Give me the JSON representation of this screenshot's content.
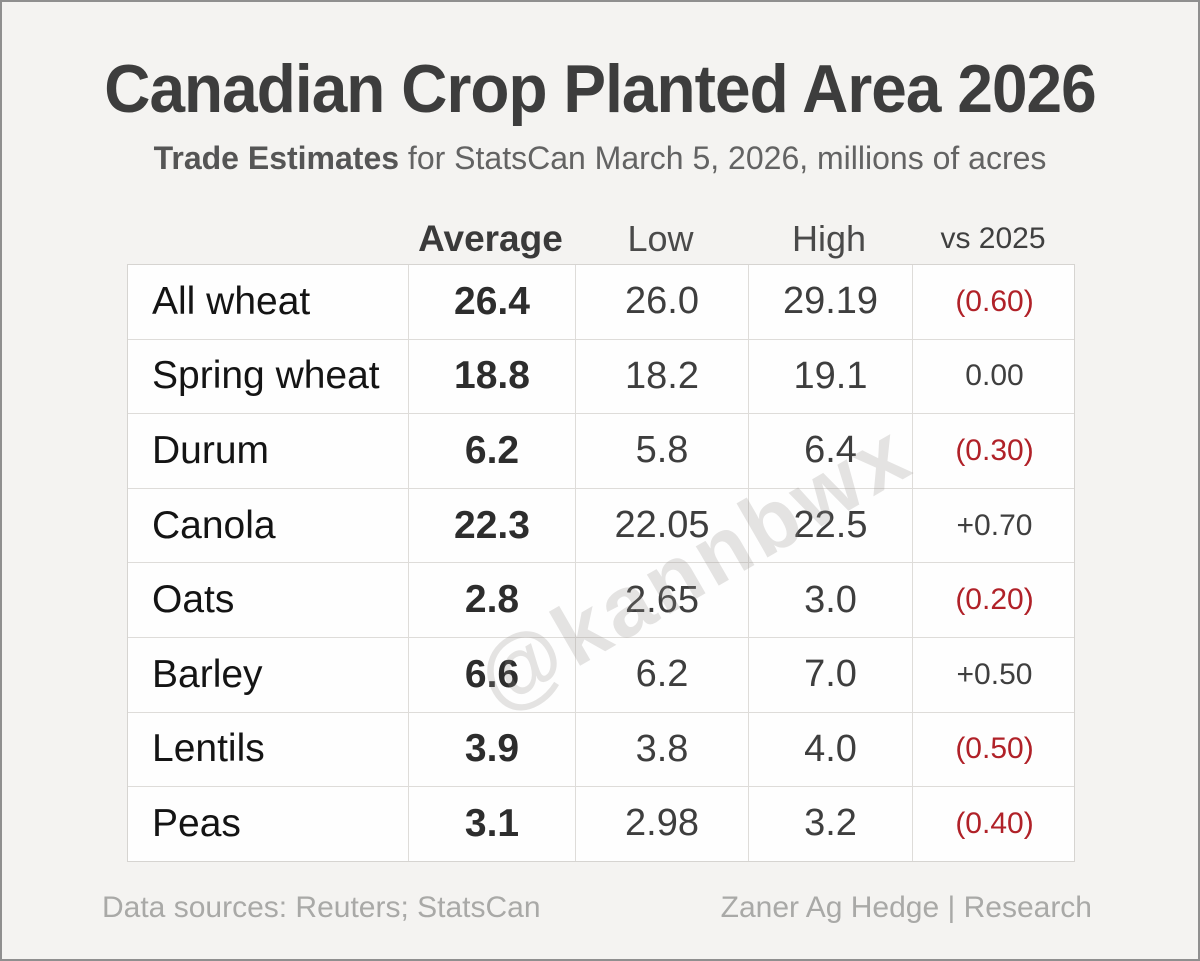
{
  "page": {
    "title": "Canadian Crop Planted Area 2026",
    "subtitle_bold": "Trade Estimates",
    "subtitle_rest": " for StatsCan March 5, 2026, millions of acres",
    "watermark": "@kannbwx"
  },
  "chart_data": {
    "type": "table",
    "title": "Canadian Crop Planted Area 2026",
    "subtitle": "Trade Estimates for StatsCan March 5, 2026, millions of acres",
    "units": "millions of acres",
    "columns": [
      "Average",
      "Low",
      "High",
      "vs 2025"
    ],
    "rows": [
      {
        "crop": "All wheat",
        "average": 26.4,
        "low": 26.0,
        "high": 29.19,
        "vs_2025": -0.6
      },
      {
        "crop": "Spring wheat",
        "average": 18.8,
        "low": 18.2,
        "high": 19.1,
        "vs_2025": 0.0
      },
      {
        "crop": "Durum",
        "average": 6.2,
        "low": 5.8,
        "high": 6.4,
        "vs_2025": -0.3
      },
      {
        "crop": "Canola",
        "average": 22.3,
        "low": 22.05,
        "high": 22.5,
        "vs_2025": 0.7
      },
      {
        "crop": "Oats",
        "average": 2.8,
        "low": 2.65,
        "high": 3.0,
        "vs_2025": -0.2
      },
      {
        "crop": "Barley",
        "average": 6.6,
        "low": 6.2,
        "high": 7.0,
        "vs_2025": 0.5
      },
      {
        "crop": "Lentils",
        "average": 3.9,
        "low": 3.8,
        "high": 4.0,
        "vs_2025": -0.5
      },
      {
        "crop": "Peas",
        "average": 3.1,
        "low": 2.98,
        "high": 3.2,
        "vs_2025": -0.4
      }
    ]
  },
  "table": {
    "header": {
      "average": "Average",
      "low": "Low",
      "high": "High",
      "vs": "vs 2025"
    },
    "rows": [
      {
        "crop": "All wheat",
        "average": "26.4",
        "low": "26.0",
        "high": "29.19",
        "vs": "(0.60)",
        "vs_negative": true
      },
      {
        "crop": "Spring wheat",
        "average": "18.8",
        "low": "18.2",
        "high": "19.1",
        "vs": "0.00",
        "vs_negative": false
      },
      {
        "crop": "Durum",
        "average": "6.2",
        "low": "5.8",
        "high": "6.4",
        "vs": "(0.30)",
        "vs_negative": true
      },
      {
        "crop": "Canola",
        "average": "22.3",
        "low": "22.05",
        "high": "22.5",
        "vs": "+0.70",
        "vs_negative": false
      },
      {
        "crop": "Oats",
        "average": "2.8",
        "low": "2.65",
        "high": "3.0",
        "vs": "(0.20)",
        "vs_negative": true
      },
      {
        "crop": "Barley",
        "average": "6.6",
        "low": "6.2",
        "high": "7.0",
        "vs": "+0.50",
        "vs_negative": false
      },
      {
        "crop": "Lentils",
        "average": "3.9",
        "low": "3.8",
        "high": "4.0",
        "vs": "(0.50)",
        "vs_negative": true
      },
      {
        "crop": "Peas",
        "average": "3.1",
        "low": "2.98",
        "high": "3.2",
        "vs": "(0.40)",
        "vs_negative": true
      }
    ]
  },
  "footer": {
    "left": "Data sources: Reuters; StatsCan",
    "right": "Zaner Ag Hedge | Research"
  },
  "colors": {
    "negative": "#b02128",
    "neutral": "#3f3f3f",
    "title": "#3d3d3d",
    "background": "#f4f3f1",
    "cell_background": "#fefefe",
    "grid_line": "#dedcd9"
  }
}
